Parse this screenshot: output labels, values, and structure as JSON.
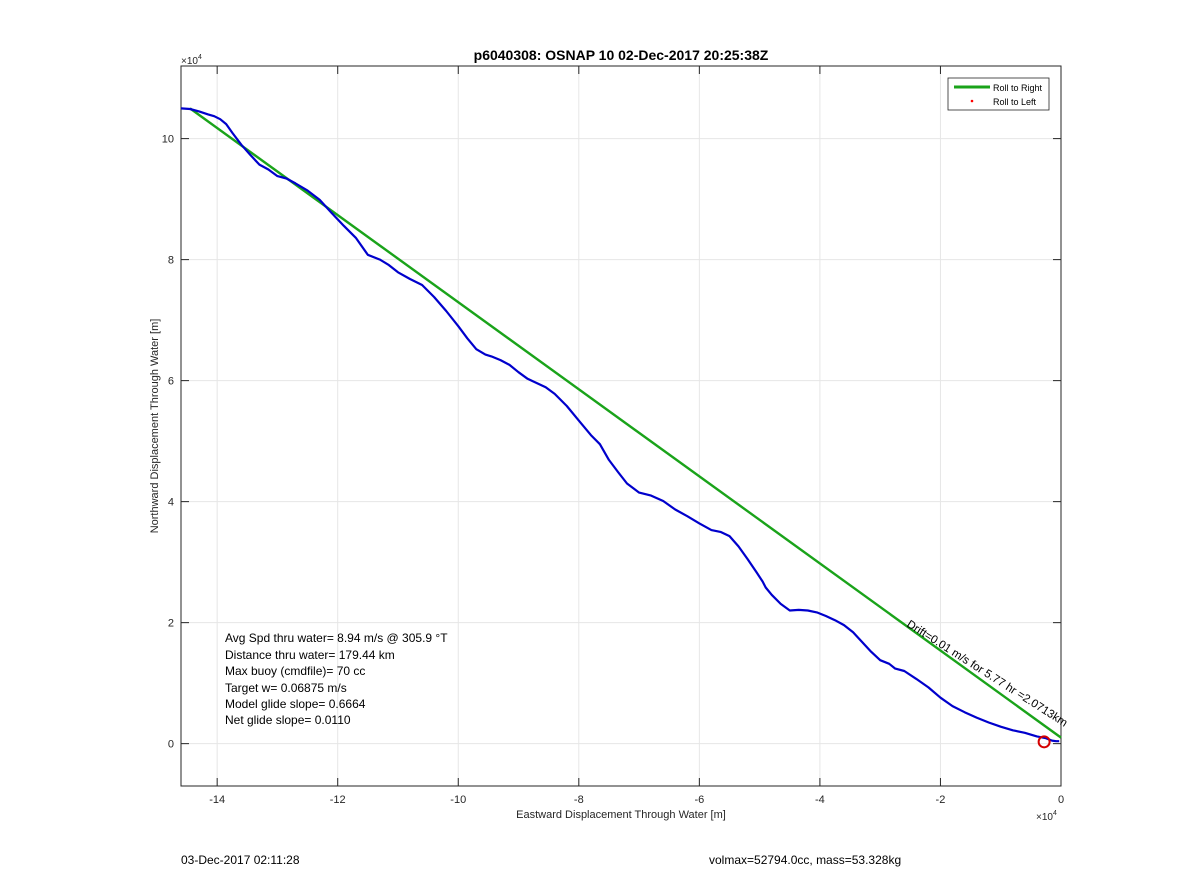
{
  "chart_data": {
    "type": "line",
    "title": "p6040308: OSNAP 10 02-Dec-2017 20:25:38Z",
    "xlabel": "Eastward Displacement Through Water [m]",
    "ylabel": "Northward Displacement Through Water [m]",
    "x_exponent_label": "×10",
    "x_exponent_power": "4",
    "y_exponent_label": "×10",
    "y_exponent_power": "4",
    "xlim": [
      -146000,
      0
    ],
    "ylim": [
      -7000,
      112000
    ],
    "xticks": [
      -140000,
      -120000,
      -100000,
      -80000,
      -60000,
      -40000,
      -20000,
      0
    ],
    "xtick_labels": [
      "-14",
      "-12",
      "-10",
      "-8",
      "-6",
      "-4",
      "-2",
      "0"
    ],
    "yticks": [
      0,
      20000,
      40000,
      60000,
      80000,
      100000
    ],
    "ytick_labels": [
      "0",
      "2",
      "4",
      "6",
      "8",
      "10"
    ],
    "grid": true,
    "legend_position": "top-right",
    "legend": [
      {
        "label": "Roll to Right",
        "color": "#1aa31a",
        "marker": "line"
      },
      {
        "label": "Roll to Left",
        "color": "#ff0000",
        "marker": "dot"
      }
    ],
    "series": [
      {
        "name": "Roll to Right",
        "color": "#1aa31a",
        "x": [
          -144500,
          0
        ],
        "y": [
          105000,
          1000
        ]
      },
      {
        "color": "#0000cc",
        "x": [
          -146000,
          -144500,
          -143000,
          -141500,
          -140500,
          -139500,
          -138500,
          -137500,
          -136000,
          -134500,
          -133000,
          -131500,
          -130000,
          -128500,
          -127000,
          -125000,
          -123000,
          -121000,
          -119000,
          -117000,
          -115000,
          -113000,
          -111500,
          -110000,
          -108000,
          -106000,
          -104000,
          -102000,
          -100000,
          -98500,
          -97000,
          -95500,
          -94500,
          -93000,
          -91500,
          -90000,
          -88500,
          -87000,
          -85500,
          -84000,
          -82000,
          -80000,
          -78000,
          -76500,
          -75000,
          -73500,
          -72000,
          -70000,
          -68000,
          -66000,
          -64000,
          -62000,
          -60000,
          -58000,
          -56500,
          -55000,
          -53500,
          -52000,
          -50500,
          -49500,
          -49000,
          -48000,
          -46500,
          -45000,
          -43500,
          -42000,
          -40500,
          -39000,
          -37500,
          -36000,
          -34500,
          -33000,
          -31500,
          -30000,
          -28500,
          -27500,
          -26000,
          -24000,
          -22000,
          -20000,
          -18000,
          -16000,
          -14000,
          -12000,
          -10000,
          -8000,
          -6000,
          -4000,
          -2500,
          -1500,
          -800,
          -300
        ],
        "y": [
          105000,
          104900,
          104500,
          104000,
          103700,
          103200,
          102400,
          101000,
          99000,
          97300,
          95700,
          94900,
          93800,
          93400,
          92600,
          91400,
          89900,
          87700,
          85600,
          83600,
          80800,
          80000,
          79100,
          77900,
          76800,
          75800,
          73800,
          71500,
          69000,
          67000,
          65200,
          64300,
          64000,
          63400,
          62600,
          61400,
          60300,
          59600,
          58900,
          57800,
          55800,
          53400,
          51000,
          49500,
          46900,
          44900,
          43000,
          41500,
          41000,
          40100,
          38700,
          37600,
          36400,
          35300,
          35000,
          34300,
          32600,
          30500,
          28300,
          26800,
          25800,
          24600,
          23100,
          22000,
          22100,
          22000,
          21700,
          21100,
          20400,
          19600,
          18400,
          16800,
          15200,
          13800,
          13200,
          12400,
          12000,
          10700,
          9300,
          7600,
          6200,
          5200,
          4300,
          3500,
          2800,
          2200,
          1800,
          1200,
          900,
          500,
          400,
          400
        ]
      }
    ],
    "annotations": [
      {
        "text": "Avg Spd thru water=  8.94 m/s @ 305.9 °T"
      },
      {
        "text": "Distance thru water= 179.44 km"
      },
      {
        "text": "Max buoy (cmdfile)= 70 cc"
      },
      {
        "text": "Target w= 0.06875 m/s"
      },
      {
        "text": "Model glide slope= 0.6664"
      },
      {
        "text": "Net glide slope= 0.0110"
      }
    ],
    "rotated_label": "Drift=0.01 m/s for 5.77 hr =2.0713km",
    "start_marker": {
      "x": -2800,
      "y": 300,
      "color": "#d40000"
    }
  },
  "footer": {
    "timestamp": "03-Dec-2017 02:11:28",
    "summary": "volmax=52794.0cc, mass=53.328kg"
  }
}
